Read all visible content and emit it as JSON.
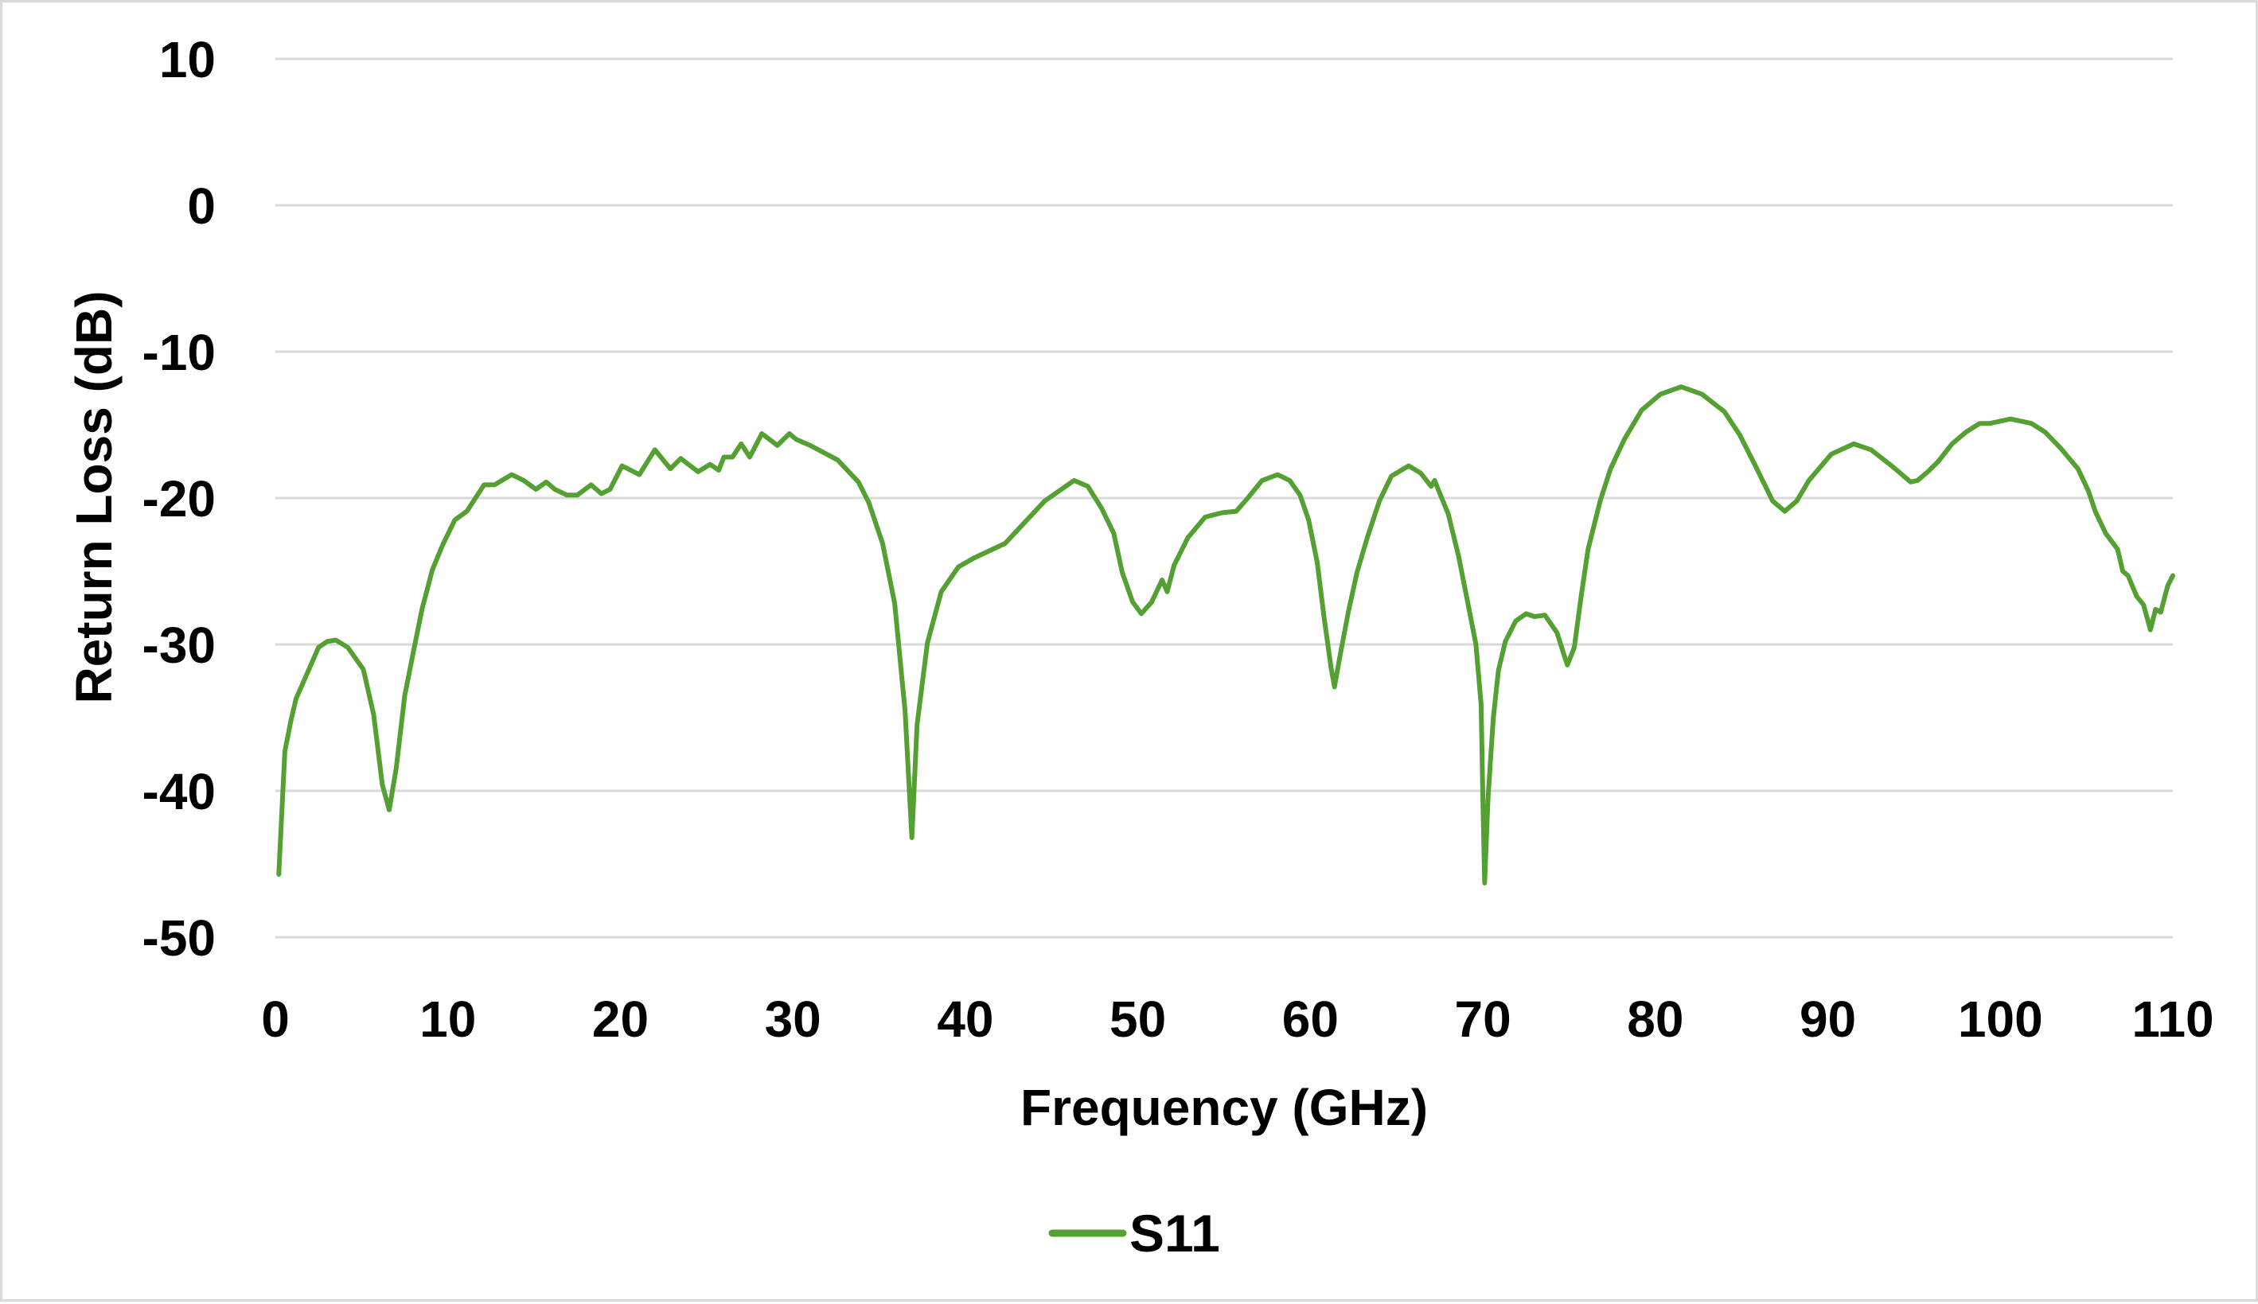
{
  "chart_data": {
    "type": "line",
    "title": "",
    "xlabel": "Frequency (GHz)",
    "ylabel": "Return Loss (dB)",
    "xlim": [
      0,
      110
    ],
    "ylim": [
      -50,
      10
    ],
    "x_ticks": [
      0,
      10,
      20,
      30,
      40,
      50,
      60,
      70,
      80,
      90,
      100,
      110
    ],
    "y_ticks": [
      10,
      0,
      -10,
      -20,
      -30,
      -40,
      -50
    ],
    "grid": {
      "horizontal": true,
      "vertical": false
    },
    "legend": {
      "position": "bottom",
      "entries": [
        "S11"
      ]
    },
    "series": [
      {
        "name": "S11",
        "color": "#55a032",
        "points": [
          [
            0.2,
            -45.7
          ],
          [
            0.3,
            -43.2
          ],
          [
            0.55,
            -37.3
          ],
          [
            0.9,
            -35.2
          ],
          [
            1.2,
            -33.7
          ],
          [
            1.8,
            -32.1
          ],
          [
            2.5,
            -30.2
          ],
          [
            3.0,
            -29.8
          ],
          [
            3.5,
            -29.7
          ],
          [
            4.2,
            -30.2
          ],
          [
            5.1,
            -31.7
          ],
          [
            5.7,
            -34.8
          ],
          [
            6.2,
            -39.6
          ],
          [
            6.6,
            -41.3
          ],
          [
            7.0,
            -38.5
          ],
          [
            7.5,
            -33.5
          ],
          [
            8.0,
            -30.5
          ],
          [
            8.5,
            -27.6
          ],
          [
            9.1,
            -24.9
          ],
          [
            9.7,
            -23.2
          ],
          [
            10.4,
            -21.5
          ],
          [
            11.1,
            -20.9
          ],
          [
            12.1,
            -19.1
          ],
          [
            12.7,
            -19.1
          ],
          [
            13.7,
            -18.4
          ],
          [
            14.4,
            -18.8
          ],
          [
            15.1,
            -19.4
          ],
          [
            15.7,
            -18.9
          ],
          [
            16.2,
            -19.4
          ],
          [
            16.9,
            -19.8
          ],
          [
            17.5,
            -19.8
          ],
          [
            18.3,
            -19.1
          ],
          [
            18.9,
            -19.7
          ],
          [
            19.4,
            -19.4
          ],
          [
            20.1,
            -17.8
          ],
          [
            21.1,
            -18.4
          ],
          [
            22.0,
            -16.7
          ],
          [
            22.9,
            -18.0
          ],
          [
            23.5,
            -17.3
          ],
          [
            24.5,
            -18.2
          ],
          [
            25.2,
            -17.7
          ],
          [
            25.7,
            -18.1
          ],
          [
            26.0,
            -17.2
          ],
          [
            26.5,
            -17.2
          ],
          [
            27.0,
            -16.3
          ],
          [
            27.5,
            -17.2
          ],
          [
            28.2,
            -15.6
          ],
          [
            29.1,
            -16.4
          ],
          [
            29.8,
            -15.6
          ],
          [
            30.2,
            -16.0
          ],
          [
            31.0,
            -16.4
          ],
          [
            32.6,
            -17.4
          ],
          [
            33.8,
            -18.9
          ],
          [
            34.4,
            -20.3
          ],
          [
            35.2,
            -23.1
          ],
          [
            35.9,
            -27.2
          ],
          [
            36.5,
            -34.5
          ],
          [
            36.9,
            -43.2
          ],
          [
            37.2,
            -35.5
          ],
          [
            37.8,
            -29.9
          ],
          [
            38.6,
            -26.4
          ],
          [
            39.6,
            -24.7
          ],
          [
            40.5,
            -24.1
          ],
          [
            42.3,
            -23.1
          ],
          [
            44.6,
            -20.2
          ],
          [
            46.3,
            -18.8
          ],
          [
            47.1,
            -19.2
          ],
          [
            47.9,
            -20.7
          ],
          [
            48.6,
            -22.4
          ],
          [
            49.1,
            -25.1
          ],
          [
            49.7,
            -27.1
          ],
          [
            50.2,
            -27.9
          ],
          [
            50.8,
            -27.1
          ],
          [
            51.4,
            -25.6
          ],
          [
            51.7,
            -26.4
          ],
          [
            52.1,
            -24.6
          ],
          [
            52.9,
            -22.7
          ],
          [
            53.9,
            -21.3
          ],
          [
            54.9,
            -21.0
          ],
          [
            55.7,
            -20.9
          ],
          [
            56.3,
            -20.1
          ],
          [
            57.2,
            -18.8
          ],
          [
            58.1,
            -18.4
          ],
          [
            58.8,
            -18.8
          ],
          [
            59.4,
            -19.8
          ],
          [
            59.9,
            -21.5
          ],
          [
            60.4,
            -24.4
          ],
          [
            60.8,
            -28.2
          ],
          [
            61.2,
            -31.6
          ],
          [
            61.4,
            -32.9
          ],
          [
            61.7,
            -30.9
          ],
          [
            62.2,
            -27.8
          ],
          [
            62.7,
            -25.1
          ],
          [
            63.3,
            -22.7
          ],
          [
            64.0,
            -20.2
          ],
          [
            64.7,
            -18.5
          ],
          [
            65.7,
            -17.8
          ],
          [
            66.4,
            -18.3
          ],
          [
            67.0,
            -19.2
          ],
          [
            67.2,
            -18.8
          ],
          [
            68.0,
            -21.1
          ],
          [
            68.6,
            -24.0
          ],
          [
            69.1,
            -27.0
          ],
          [
            69.6,
            -30.0
          ],
          [
            69.9,
            -34.1
          ],
          [
            70.0,
            -40.5
          ],
          [
            70.1,
            -46.3
          ],
          [
            70.3,
            -40.5
          ],
          [
            70.6,
            -35.1
          ],
          [
            70.9,
            -31.8
          ],
          [
            71.3,
            -29.8
          ],
          [
            71.9,
            -28.4
          ],
          [
            72.5,
            -27.9
          ],
          [
            73.0,
            -28.1
          ],
          [
            73.6,
            -28.0
          ],
          [
            74.3,
            -29.2
          ],
          [
            74.7,
            -30.7
          ],
          [
            74.9,
            -31.4
          ],
          [
            75.3,
            -30.2
          ],
          [
            75.7,
            -26.7
          ],
          [
            76.1,
            -23.5
          ],
          [
            76.8,
            -20.2
          ],
          [
            77.4,
            -18.0
          ],
          [
            78.2,
            -16.0
          ],
          [
            79.2,
            -14.0
          ],
          [
            80.3,
            -12.9
          ],
          [
            81.5,
            -12.4
          ],
          [
            82.7,
            -12.9
          ],
          [
            84.0,
            -14.1
          ],
          [
            84.9,
            -15.7
          ],
          [
            85.8,
            -17.8
          ],
          [
            86.8,
            -20.2
          ],
          [
            87.5,
            -20.9
          ],
          [
            88.2,
            -20.2
          ],
          [
            88.9,
            -18.8
          ],
          [
            90.2,
            -17.0
          ],
          [
            91.5,
            -16.3
          ],
          [
            92.5,
            -16.7
          ],
          [
            93.7,
            -17.8
          ],
          [
            94.8,
            -18.9
          ],
          [
            95.2,
            -18.8
          ],
          [
            95.8,
            -18.2
          ],
          [
            96.4,
            -17.5
          ],
          [
            97.2,
            -16.3
          ],
          [
            98.0,
            -15.5
          ],
          [
            98.8,
            -14.9
          ],
          [
            99.4,
            -14.9
          ],
          [
            100.6,
            -14.6
          ],
          [
            101.8,
            -14.9
          ],
          [
            102.6,
            -15.5
          ],
          [
            103.5,
            -16.6
          ],
          [
            104.5,
            -18.0
          ],
          [
            105.1,
            -19.5
          ],
          [
            105.5,
            -20.9
          ],
          [
            106.1,
            -22.4
          ],
          [
            106.8,
            -23.5
          ],
          [
            107.1,
            -25.0
          ],
          [
            107.4,
            -25.3
          ],
          [
            107.9,
            -26.7
          ],
          [
            108.3,
            -27.3
          ],
          [
            108.7,
            -29.0
          ],
          [
            109.0,
            -27.6
          ],
          [
            109.3,
            -27.8
          ],
          [
            109.7,
            -26.0
          ],
          [
            110.0,
            -25.3
          ]
        ]
      }
    ]
  },
  "labels": {
    "xlabel": "Frequency (GHz)",
    "ylabel": "Return Loss (dB)",
    "legend_s11": "S11"
  }
}
